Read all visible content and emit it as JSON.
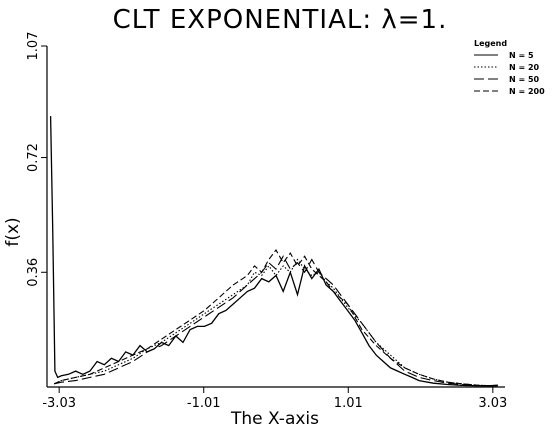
{
  "chart_data": {
    "type": "line",
    "title": "CLT EXPONENTIAL: λ=1.",
    "xlabel": "The X-axis",
    "ylabel": "f(x)",
    "xlim": [
      -3.2,
      3.2
    ],
    "ylim": [
      0,
      1.07
    ],
    "x_ticks": [
      -3.03,
      -1.01,
      1.01,
      3.03
    ],
    "x_tick_labels": [
      "-3.03",
      "-1.01",
      "1.01",
      "3.03"
    ],
    "y_ticks": [
      0.36,
      0.72,
      1.07
    ],
    "y_tick_labels": [
      "0.36",
      "0.72",
      "1.07"
    ],
    "grid": false,
    "legend": {
      "title": "Legend",
      "placement": "top-right",
      "entries": [
        "N =   5",
        "N =  20",
        "N =  50",
        "N = 200"
      ]
    },
    "series": [
      {
        "name": "N =   5",
        "style": "solid",
        "x": [
          -3.15,
          -3.12,
          -3.09,
          -3.05,
          -3.0,
          -2.9,
          -2.8,
          -2.7,
          -2.6,
          -2.5,
          -2.4,
          -2.3,
          -2.2,
          -2.1,
          -2.0,
          -1.9,
          -1.8,
          -1.7,
          -1.6,
          -1.5,
          -1.4,
          -1.3,
          -1.2,
          -1.1,
          -1.0,
          -0.9,
          -0.8,
          -0.7,
          -0.6,
          -0.5,
          -0.4,
          -0.3,
          -0.2,
          -0.1,
          0.0,
          0.1,
          0.2,
          0.3,
          0.4,
          0.5,
          0.6,
          0.7,
          0.8,
          0.9,
          1.0,
          1.1,
          1.2,
          1.3,
          1.4,
          1.5,
          1.6,
          1.7,
          1.8,
          1.9,
          2.0,
          2.2,
          2.4,
          2.6,
          2.8,
          3.0,
          3.1
        ],
        "y": [
          0.85,
          0.5,
          0.05,
          0.03,
          0.035,
          0.04,
          0.05,
          0.04,
          0.05,
          0.08,
          0.07,
          0.09,
          0.08,
          0.11,
          0.1,
          0.13,
          0.11,
          0.12,
          0.14,
          0.13,
          0.16,
          0.14,
          0.18,
          0.19,
          0.19,
          0.2,
          0.23,
          0.24,
          0.26,
          0.28,
          0.3,
          0.31,
          0.34,
          0.33,
          0.35,
          0.3,
          0.36,
          0.29,
          0.38,
          0.34,
          0.37,
          0.32,
          0.3,
          0.27,
          0.24,
          0.21,
          0.17,
          0.13,
          0.1,
          0.08,
          0.06,
          0.05,
          0.04,
          0.03,
          0.02,
          0.012,
          0.008,
          0.005,
          0.004,
          0.004,
          0.006
        ]
      },
      {
        "name": "N =  20",
        "style": "dotted",
        "x": [
          -3.1,
          -3.0,
          -2.8,
          -2.6,
          -2.4,
          -2.2,
          -2.0,
          -1.8,
          -1.6,
          -1.4,
          -1.2,
          -1.0,
          -0.8,
          -0.6,
          -0.4,
          -0.3,
          -0.2,
          -0.1,
          0.0,
          0.1,
          0.2,
          0.3,
          0.4,
          0.5,
          0.6,
          0.7,
          0.8,
          0.9,
          1.0,
          1.2,
          1.4,
          1.6,
          1.8,
          2.0,
          2.2,
          2.4,
          2.6,
          2.8,
          3.0,
          3.1
        ],
        "y": [
          0.01,
          0.02,
          0.03,
          0.04,
          0.05,
          0.07,
          0.09,
          0.12,
          0.14,
          0.17,
          0.2,
          0.23,
          0.26,
          0.29,
          0.32,
          0.36,
          0.35,
          0.38,
          0.35,
          0.38,
          0.36,
          0.4,
          0.37,
          0.35,
          0.36,
          0.33,
          0.31,
          0.28,
          0.25,
          0.2,
          0.14,
          0.1,
          0.06,
          0.04,
          0.025,
          0.015,
          0.01,
          0.006,
          0.004,
          0.004
        ]
      },
      {
        "name": "N =  50",
        "style": "long-dash",
        "x": [
          -3.1,
          -3.0,
          -2.8,
          -2.6,
          -2.4,
          -2.2,
          -2.0,
          -1.8,
          -1.6,
          -1.4,
          -1.2,
          -1.0,
          -0.8,
          -0.6,
          -0.4,
          -0.2,
          -0.1,
          0.0,
          0.1,
          0.2,
          0.3,
          0.4,
          0.5,
          0.6,
          0.7,
          0.8,
          0.9,
          1.0,
          1.2,
          1.4,
          1.6,
          1.8,
          2.0,
          2.2,
          2.4,
          2.6,
          2.8,
          3.0,
          3.1
        ],
        "y": [
          0.01,
          0.015,
          0.02,
          0.03,
          0.04,
          0.06,
          0.08,
          0.11,
          0.13,
          0.16,
          0.19,
          0.22,
          0.25,
          0.28,
          0.32,
          0.36,
          0.39,
          0.37,
          0.41,
          0.37,
          0.39,
          0.36,
          0.4,
          0.36,
          0.34,
          0.32,
          0.29,
          0.26,
          0.2,
          0.14,
          0.09,
          0.05,
          0.03,
          0.02,
          0.012,
          0.008,
          0.005,
          0.004,
          0.004
        ]
      },
      {
        "name": "N = 200",
        "style": "dashed",
        "x": [
          -3.1,
          -3.0,
          -2.8,
          -2.6,
          -2.4,
          -2.2,
          -2.0,
          -1.8,
          -1.6,
          -1.4,
          -1.2,
          -1.0,
          -0.8,
          -0.6,
          -0.4,
          -0.3,
          -0.2,
          -0.1,
          0.0,
          0.1,
          0.2,
          0.3,
          0.4,
          0.5,
          0.6,
          0.7,
          0.8,
          0.9,
          1.0,
          1.1,
          1.2,
          1.4,
          1.6,
          1.8,
          2.0,
          2.2,
          2.4,
          2.6,
          2.8,
          3.0,
          3.1
        ],
        "y": [
          0.01,
          0.02,
          0.03,
          0.04,
          0.06,
          0.08,
          0.1,
          0.12,
          0.15,
          0.18,
          0.21,
          0.24,
          0.28,
          0.32,
          0.35,
          0.38,
          0.36,
          0.4,
          0.43,
          0.39,
          0.42,
          0.38,
          0.41,
          0.37,
          0.35,
          0.33,
          0.3,
          0.28,
          0.26,
          0.22,
          0.18,
          0.13,
          0.09,
          0.06,
          0.04,
          0.025,
          0.015,
          0.01,
          0.006,
          0.004,
          0.004
        ]
      }
    ]
  }
}
